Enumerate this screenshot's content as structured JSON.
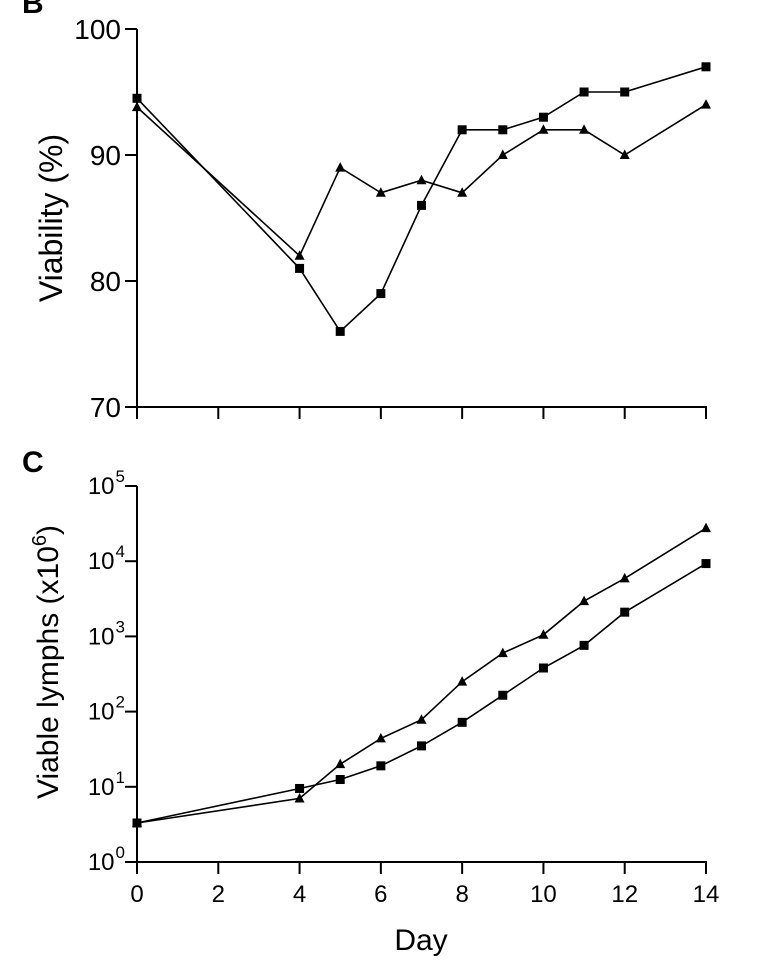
{
  "chart_data": [
    {
      "panel_label": "B",
      "type": "line",
      "title": "",
      "xlabel": "",
      "ylabel": "Viability (%)",
      "xlim": [
        0,
        14
      ],
      "ylim": [
        70,
        100
      ],
      "yscale": "linear",
      "x_ticks": [
        0,
        2,
        4,
        6,
        8,
        10,
        12,
        14
      ],
      "y_ticks": [
        70,
        80,
        90,
        100
      ],
      "y_tick_labels": [
        "70",
        "80",
        "90",
        "100"
      ],
      "show_x_tick_labels": false,
      "grid": false,
      "series": [
        {
          "name": "squares",
          "marker": "square",
          "x": [
            0,
            4,
            5,
            6,
            7,
            8,
            9,
            10,
            11,
            12,
            14
          ],
          "values": [
            94.5,
            81,
            76,
            79,
            86,
            92,
            92,
            93,
            95,
            95,
            97
          ]
        },
        {
          "name": "triangles",
          "marker": "triangle",
          "x": [
            0,
            4,
            5,
            6,
            7,
            8,
            9,
            10,
            11,
            12,
            14
          ],
          "values": [
            93.8,
            82,
            89,
            87,
            88,
            87,
            90,
            92,
            92,
            90,
            94
          ]
        }
      ]
    },
    {
      "panel_label": "C",
      "type": "line",
      "title": "",
      "xlabel": "Day",
      "ylabel": "Viable lymphs (x10",
      "ylabel_superscript": "6",
      "ylabel_close": ")",
      "xlim": [
        0,
        14
      ],
      "ylim": [
        1,
        100000
      ],
      "yscale": "log",
      "x_ticks": [
        0,
        2,
        4,
        6,
        8,
        10,
        12,
        14
      ],
      "x_tick_labels": [
        "0",
        "2",
        "4",
        "6",
        "8",
        "10",
        "12",
        "14"
      ],
      "y_ticks": [
        1,
        10,
        100,
        1000,
        10000,
        100000
      ],
      "y_tick_base": "10",
      "y_tick_exponents": [
        "0",
        "1",
        "2",
        "3",
        "4",
        "5"
      ],
      "show_x_tick_labels": true,
      "grid": false,
      "series": [
        {
          "name": "squares",
          "marker": "square",
          "x": [
            0,
            4,
            5,
            6,
            7,
            8,
            9,
            10,
            11,
            12,
            14
          ],
          "values": [
            3.3,
            9.5,
            12.5,
            19,
            35,
            72,
            165,
            380,
            760,
            2100,
            9300
          ]
        },
        {
          "name": "triangles",
          "marker": "triangle",
          "x": [
            0,
            4,
            5,
            6,
            7,
            8,
            9,
            10,
            11,
            12,
            14
          ],
          "values": [
            3.3,
            7,
            20,
            44,
            78,
            250,
            600,
            1050,
            2950,
            5900,
            27500
          ]
        }
      ]
    }
  ]
}
